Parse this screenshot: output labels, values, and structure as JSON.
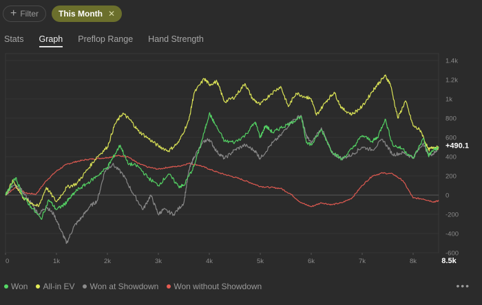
{
  "filters": {
    "filter_label": "Filter",
    "active_filter": "This Month"
  },
  "tabs": [
    {
      "label": "Stats",
      "active": false
    },
    {
      "label": "Graph",
      "active": true
    },
    {
      "label": "Preflop Range",
      "active": false
    },
    {
      "label": "Hand Strength",
      "active": false
    }
  ],
  "chart_data": {
    "type": "line",
    "title": "",
    "xlabel": "",
    "ylabel": "",
    "xlim": [
      0,
      8500
    ],
    "ylim": [
      -600,
      1400
    ],
    "x_ticks": [
      0,
      1000,
      2000,
      3000,
      4000,
      5000,
      6000,
      7000,
      8000
    ],
    "x_tick_labels": [
      "0",
      "1k",
      "2k",
      "3k",
      "4k",
      "5k",
      "6k",
      "7k",
      "8k"
    ],
    "y_ticks": [
      1400,
      1200,
      1000,
      800,
      600,
      400,
      200,
      0,
      -200,
      -400,
      -600
    ],
    "y_tick_labels": [
      "1.4k",
      "1.2k",
      "1k",
      "800",
      "600",
      "400",
      "200",
      "0",
      "-200",
      "-400",
      "-600"
    ],
    "x_end_label": "8.5k",
    "end_value_label": "+490.1",
    "series": [
      {
        "name": "Won",
        "color": "#55d966",
        "points": [
          [
            0,
            0
          ],
          [
            200,
            180
          ],
          [
            350,
            -20
          ],
          [
            500,
            -120
          ],
          [
            700,
            -250
          ],
          [
            850,
            -50
          ],
          [
            1000,
            -150
          ],
          [
            1150,
            -100
          ],
          [
            1250,
            -40
          ],
          [
            1400,
            50
          ],
          [
            1600,
            120
          ],
          [
            1800,
            200
          ],
          [
            2000,
            290
          ],
          [
            2100,
            380
          ],
          [
            2250,
            520
          ],
          [
            2400,
            330
          ],
          [
            2600,
            300
          ],
          [
            2800,
            180
          ],
          [
            3000,
            100
          ],
          [
            3200,
            220
          ],
          [
            3400,
            90
          ],
          [
            3500,
            100
          ],
          [
            3700,
            300
          ],
          [
            3900,
            650
          ],
          [
            4000,
            850
          ],
          [
            4100,
            750
          ],
          [
            4300,
            560
          ],
          [
            4500,
            550
          ],
          [
            4700,
            620
          ],
          [
            4900,
            760
          ],
          [
            5000,
            600
          ],
          [
            5100,
            720
          ],
          [
            5250,
            650
          ],
          [
            5400,
            700
          ],
          [
            5600,
            750
          ],
          [
            5800,
            820
          ],
          [
            5900,
            560
          ],
          [
            6000,
            520
          ],
          [
            6200,
            680
          ],
          [
            6400,
            460
          ],
          [
            6600,
            370
          ],
          [
            6800,
            480
          ],
          [
            7000,
            620
          ],
          [
            7200,
            560
          ],
          [
            7300,
            600
          ],
          [
            7450,
            790
          ],
          [
            7600,
            520
          ],
          [
            7800,
            480
          ],
          [
            8000,
            380
          ],
          [
            8200,
            590
          ],
          [
            8300,
            410
          ],
          [
            8400,
            470
          ],
          [
            8500,
            490
          ]
        ]
      },
      {
        "name": "All-in EV",
        "color": "#e4ec58",
        "points": [
          [
            0,
            0
          ],
          [
            150,
            150
          ],
          [
            350,
            -30
          ],
          [
            500,
            -80
          ],
          [
            650,
            -120
          ],
          [
            800,
            80
          ],
          [
            1000,
            -70
          ],
          [
            1200,
            80
          ],
          [
            1400,
            120
          ],
          [
            1600,
            260
          ],
          [
            1800,
            400
          ],
          [
            2000,
            500
          ],
          [
            2150,
            740
          ],
          [
            2300,
            850
          ],
          [
            2450,
            780
          ],
          [
            2600,
            670
          ],
          [
            2800,
            590
          ],
          [
            3000,
            510
          ],
          [
            3200,
            460
          ],
          [
            3400,
            550
          ],
          [
            3600,
            780
          ],
          [
            3700,
            1060
          ],
          [
            3900,
            1210
          ],
          [
            4000,
            1150
          ],
          [
            4150,
            1180
          ],
          [
            4300,
            970
          ],
          [
            4500,
            1020
          ],
          [
            4700,
            1160
          ],
          [
            4850,
            1000
          ],
          [
            5000,
            940
          ],
          [
            5200,
            1050
          ],
          [
            5400,
            1130
          ],
          [
            5550,
            920
          ],
          [
            5700,
            1060
          ],
          [
            5900,
            1020
          ],
          [
            6000,
            1000
          ],
          [
            6100,
            830
          ],
          [
            6300,
            980
          ],
          [
            6450,
            1070
          ],
          [
            6600,
            900
          ],
          [
            6800,
            840
          ],
          [
            7000,
            920
          ],
          [
            7200,
            1080
          ],
          [
            7300,
            1150
          ],
          [
            7450,
            1240
          ],
          [
            7550,
            1160
          ],
          [
            7700,
            800
          ],
          [
            7850,
            980
          ],
          [
            8000,
            720
          ],
          [
            8150,
            670
          ],
          [
            8300,
            470
          ],
          [
            8400,
            500
          ],
          [
            8500,
            490
          ]
        ]
      },
      {
        "name": "Won at Showdown",
        "color": "#8c8c8c",
        "points": [
          [
            0,
            0
          ],
          [
            150,
            100
          ],
          [
            300,
            60
          ],
          [
            500,
            -80
          ],
          [
            650,
            -200
          ],
          [
            800,
            -120
          ],
          [
            950,
            -200
          ],
          [
            1100,
            -380
          ],
          [
            1200,
            -500
          ],
          [
            1350,
            -320
          ],
          [
            1500,
            -230
          ],
          [
            1650,
            -120
          ],
          [
            1800,
            -60
          ],
          [
            1950,
            250
          ],
          [
            2100,
            320
          ],
          [
            2300,
            220
          ],
          [
            2500,
            20
          ],
          [
            2700,
            -150
          ],
          [
            2850,
            0
          ],
          [
            3000,
            -200
          ],
          [
            3100,
            -150
          ],
          [
            3300,
            -200
          ],
          [
            3500,
            -80
          ],
          [
            3600,
            260
          ],
          [
            3700,
            400
          ],
          [
            3900,
            560
          ],
          [
            4000,
            580
          ],
          [
            4150,
            450
          ],
          [
            4300,
            380
          ],
          [
            4500,
            470
          ],
          [
            4700,
            520
          ],
          [
            4900,
            460
          ],
          [
            5000,
            380
          ],
          [
            5200,
            520
          ],
          [
            5400,
            620
          ],
          [
            5600,
            760
          ],
          [
            5800,
            830
          ],
          [
            5900,
            620
          ],
          [
            6000,
            540
          ],
          [
            6200,
            700
          ],
          [
            6400,
            440
          ],
          [
            6600,
            380
          ],
          [
            6800,
            420
          ],
          [
            7000,
            500
          ],
          [
            7200,
            470
          ],
          [
            7400,
            580
          ],
          [
            7600,
            420
          ],
          [
            7800,
            440
          ],
          [
            8000,
            390
          ],
          [
            8200,
            540
          ],
          [
            8300,
            420
          ],
          [
            8400,
            430
          ],
          [
            8500,
            490
          ]
        ]
      },
      {
        "name": "Won without Showdown",
        "color": "#e85c52",
        "points": [
          [
            0,
            0
          ],
          [
            200,
            80
          ],
          [
            400,
            20
          ],
          [
            600,
            10
          ],
          [
            800,
            150
          ],
          [
            1000,
            250
          ],
          [
            1200,
            320
          ],
          [
            1400,
            350
          ],
          [
            1600,
            370
          ],
          [
            1800,
            380
          ],
          [
            2000,
            390
          ],
          [
            2200,
            410
          ],
          [
            2400,
            400
          ],
          [
            2600,
            330
          ],
          [
            2800,
            290
          ],
          [
            3000,
            270
          ],
          [
            3200,
            290
          ],
          [
            3400,
            300
          ],
          [
            3600,
            330
          ],
          [
            3800,
            310
          ],
          [
            4000,
            270
          ],
          [
            4200,
            230
          ],
          [
            4400,
            200
          ],
          [
            4600,
            170
          ],
          [
            4800,
            130
          ],
          [
            5000,
            90
          ],
          [
            5200,
            80
          ],
          [
            5400,
            70
          ],
          [
            5600,
            10
          ],
          [
            5800,
            -80
          ],
          [
            6000,
            -120
          ],
          [
            6200,
            -80
          ],
          [
            6400,
            -100
          ],
          [
            6600,
            -80
          ],
          [
            6800,
            -30
          ],
          [
            7000,
            100
          ],
          [
            7200,
            200
          ],
          [
            7400,
            230
          ],
          [
            7600,
            220
          ],
          [
            7800,
            150
          ],
          [
            8000,
            -30
          ],
          [
            8200,
            -40
          ],
          [
            8400,
            -70
          ],
          [
            8500,
            -60
          ]
        ]
      }
    ]
  },
  "legend": [
    {
      "label": "Won",
      "color": "#55d966"
    },
    {
      "label": "All-in EV",
      "color": "#e4ec58"
    },
    {
      "label": "Won at Showdown",
      "color": "#8c8c8c"
    },
    {
      "label": "Won without Showdown",
      "color": "#e85c52"
    }
  ],
  "more_menu": "• • •"
}
